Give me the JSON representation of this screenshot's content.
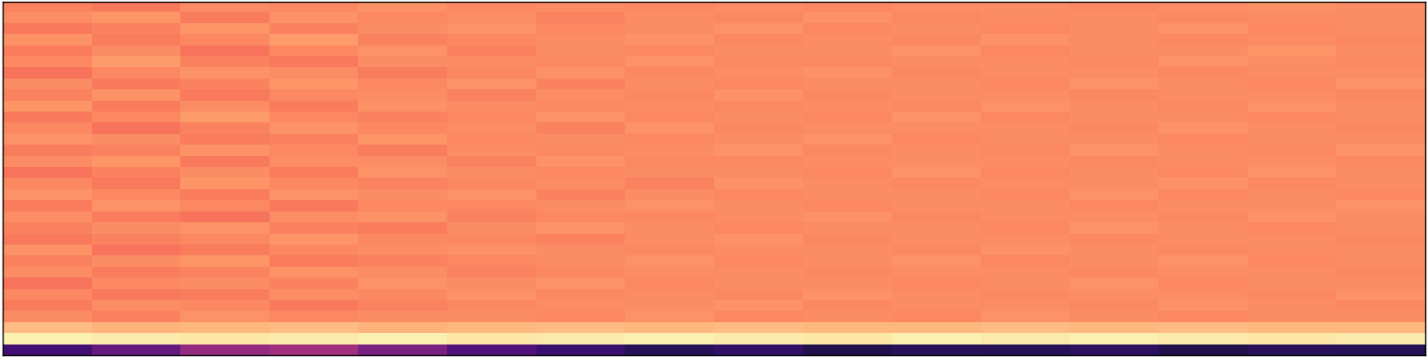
{
  "chart_data": {
    "type": "heatmap",
    "color": "magma",
    "tick_labels": false,
    "color_range": [
      0,
      1
    ],
    "cells": [
      [
        0.74,
        0.72,
        0.76,
        0.75,
        0.77,
        0.75,
        0.76,
        0.75,
        0.76,
        0.75,
        0.76,
        0.76,
        0.75,
        0.76,
        0.77,
        0.76
      ],
      [
        0.76,
        0.78,
        0.73,
        0.77,
        0.75,
        0.76,
        0.74,
        0.76,
        0.75,
        0.77,
        0.75,
        0.76,
        0.76,
        0.75,
        0.76,
        0.76
      ],
      [
        0.72,
        0.74,
        0.78,
        0.74,
        0.76,
        0.77,
        0.75,
        0.76,
        0.77,
        0.75,
        0.76,
        0.75,
        0.76,
        0.77,
        0.75,
        0.76
      ],
      [
        0.77,
        0.73,
        0.75,
        0.79,
        0.74,
        0.75,
        0.76,
        0.77,
        0.75,
        0.76,
        0.75,
        0.77,
        0.76,
        0.75,
        0.76,
        0.75
      ],
      [
        0.73,
        0.76,
        0.71,
        0.75,
        0.77,
        0.74,
        0.76,
        0.75,
        0.76,
        0.76,
        0.77,
        0.75,
        0.76,
        0.76,
        0.78,
        0.76
      ],
      [
        0.75,
        0.79,
        0.74,
        0.72,
        0.76,
        0.76,
        0.75,
        0.77,
        0.75,
        0.75,
        0.76,
        0.76,
        0.75,
        0.77,
        0.76,
        0.75
      ],
      [
        0.71,
        0.75,
        0.77,
        0.76,
        0.73,
        0.75,
        0.77,
        0.75,
        0.76,
        0.77,
        0.75,
        0.76,
        0.76,
        0.75,
        0.76,
        0.76
      ],
      [
        0.76,
        0.72,
        0.74,
        0.78,
        0.75,
        0.77,
        0.74,
        0.76,
        0.75,
        0.76,
        0.76,
        0.75,
        0.77,
        0.76,
        0.75,
        0.77
      ],
      [
        0.74,
        0.77,
        0.72,
        0.75,
        0.76,
        0.74,
        0.76,
        0.75,
        0.77,
        0.75,
        0.76,
        0.76,
        0.75,
        0.76,
        0.76,
        0.75
      ],
      [
        0.78,
        0.73,
        0.76,
        0.73,
        0.77,
        0.76,
        0.75,
        0.76,
        0.75,
        0.76,
        0.75,
        0.77,
        0.76,
        0.75,
        0.77,
        0.76
      ],
      [
        0.72,
        0.75,
        0.79,
        0.75,
        0.74,
        0.75,
        0.77,
        0.75,
        0.76,
        0.75,
        0.77,
        0.75,
        0.76,
        0.76,
        0.75,
        0.76
      ],
      [
        0.75,
        0.71,
        0.74,
        0.77,
        0.75,
        0.76,
        0.74,
        0.77,
        0.75,
        0.76,
        0.76,
        0.76,
        0.75,
        0.77,
        0.76,
        0.75
      ],
      [
        0.77,
        0.76,
        0.73,
        0.74,
        0.78,
        0.75,
        0.76,
        0.75,
        0.76,
        0.77,
        0.75,
        0.76,
        0.76,
        0.75,
        0.76,
        0.76
      ],
      [
        0.73,
        0.74,
        0.77,
        0.75,
        0.73,
        0.76,
        0.75,
        0.76,
        0.77,
        0.75,
        0.76,
        0.75,
        0.77,
        0.76,
        0.75,
        0.77
      ],
      [
        0.76,
        0.78,
        0.72,
        0.76,
        0.76,
        0.74,
        0.77,
        0.75,
        0.75,
        0.76,
        0.76,
        0.76,
        0.75,
        0.76,
        0.76,
        0.75
      ],
      [
        0.71,
        0.74,
        0.76,
        0.73,
        0.77,
        0.76,
        0.75,
        0.76,
        0.76,
        0.75,
        0.77,
        0.75,
        0.76,
        0.75,
        0.77,
        0.76
      ],
      [
        0.75,
        0.72,
        0.78,
        0.75,
        0.74,
        0.75,
        0.76,
        0.74,
        0.77,
        0.76,
        0.75,
        0.76,
        0.76,
        0.77,
        0.75,
        0.76
      ],
      [
        0.77,
        0.75,
        0.73,
        0.77,
        0.76,
        0.77,
        0.74,
        0.76,
        0.75,
        0.76,
        0.76,
        0.75,
        0.77,
        0.75,
        0.76,
        0.75
      ],
      [
        0.73,
        0.77,
        0.75,
        0.72,
        0.75,
        0.75,
        0.76,
        0.77,
        0.76,
        0.75,
        0.76,
        0.76,
        0.75,
        0.76,
        0.76,
        0.77
      ],
      [
        0.76,
        0.73,
        0.71,
        0.76,
        0.77,
        0.74,
        0.75,
        0.75,
        0.76,
        0.77,
        0.75,
        0.76,
        0.76,
        0.75,
        0.77,
        0.76
      ],
      [
        0.74,
        0.76,
        0.77,
        0.74,
        0.73,
        0.76,
        0.77,
        0.76,
        0.75,
        0.76,
        0.76,
        0.75,
        0.77,
        0.76,
        0.75,
        0.76
      ],
      [
        0.72,
        0.74,
        0.75,
        0.78,
        0.75,
        0.75,
        0.74,
        0.76,
        0.77,
        0.75,
        0.76,
        0.76,
        0.75,
        0.76,
        0.76,
        0.75
      ],
      [
        0.77,
        0.71,
        0.73,
        0.75,
        0.76,
        0.77,
        0.76,
        0.75,
        0.76,
        0.76,
        0.75,
        0.77,
        0.76,
        0.75,
        0.76,
        0.76
      ],
      [
        0.74,
        0.76,
        0.78,
        0.73,
        0.74,
        0.75,
        0.76,
        0.77,
        0.75,
        0.76,
        0.77,
        0.75,
        0.76,
        0.77,
        0.75,
        0.76
      ],
      [
        0.76,
        0.73,
        0.74,
        0.77,
        0.76,
        0.74,
        0.75,
        0.76,
        0.76,
        0.75,
        0.76,
        0.76,
        0.75,
        0.76,
        0.76,
        0.75
      ],
      [
        0.71,
        0.75,
        0.76,
        0.74,
        0.77,
        0.76,
        0.77,
        0.75,
        0.76,
        0.76,
        0.75,
        0.76,
        0.77,
        0.75,
        0.76,
        0.76
      ],
      [
        0.75,
        0.72,
        0.73,
        0.76,
        0.75,
        0.77,
        0.75,
        0.76,
        0.75,
        0.77,
        0.76,
        0.75,
        0.76,
        0.76,
        0.75,
        0.77
      ],
      [
        0.73,
        0.76,
        0.75,
        0.72,
        0.74,
        0.75,
        0.76,
        0.76,
        0.77,
        0.75,
        0.76,
        0.76,
        0.75,
        0.77,
        0.76,
        0.75
      ],
      [
        0.76,
        0.74,
        0.77,
        0.75,
        0.76,
        0.76,
        0.75,
        0.77,
        0.75,
        0.76,
        0.75,
        0.77,
        0.76,
        0.75,
        0.76,
        0.76
      ],
      [
        0.86,
        0.84,
        0.85,
        0.86,
        0.84,
        0.85,
        0.86,
        0.85,
        0.86,
        0.85,
        0.85,
        0.86,
        0.85,
        0.86,
        0.85,
        0.85
      ],
      [
        0.97,
        0.96,
        0.95,
        0.96,
        0.97,
        0.95,
        0.96,
        0.97,
        0.96,
        0.95,
        0.97,
        0.96,
        0.97,
        0.96,
        0.95,
        0.96
      ],
      [
        0.22,
        0.3,
        0.42,
        0.45,
        0.35,
        0.25,
        0.2,
        0.15,
        0.18,
        0.14,
        0.16,
        0.15,
        0.17,
        0.14,
        0.16,
        0.15
      ]
    ]
  }
}
